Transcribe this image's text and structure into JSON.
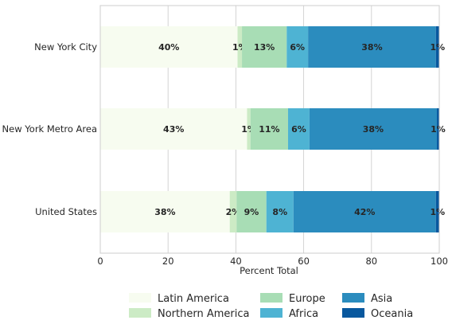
{
  "chart_data": {
    "type": "bar",
    "orientation": "horizontal",
    "stacked": true,
    "categories": [
      "New York City",
      "New York Metro Area",
      "United States"
    ],
    "series": [
      {
        "name": "Latin America",
        "color": "#f7fcf0",
        "values": [
          40.5,
          43.3,
          38.2
        ],
        "labels": [
          "40%",
          "43%",
          "38%"
        ]
      },
      {
        "name": "Northern America",
        "color": "#ccebc5",
        "values": [
          1.3,
          1.0,
          2.0
        ],
        "labels": [
          "1%",
          "1%",
          "2%"
        ]
      },
      {
        "name": "Europe",
        "color": "#a8ddb5",
        "values": [
          13.2,
          11.1,
          8.8
        ],
        "labels": [
          "13%",
          "11%",
          "9%"
        ]
      },
      {
        "name": "Africa",
        "color": "#4eb3d3",
        "values": [
          6.3,
          6.3,
          8.0
        ],
        "labels": [
          "6%",
          "6%",
          "8%"
        ]
      },
      {
        "name": "Asia",
        "color": "#2b8cbe",
        "values": [
          37.7,
          37.6,
          42.0
        ],
        "labels": [
          "38%",
          "38%",
          "42%"
        ]
      },
      {
        "name": "Oceania",
        "color": "#08589e",
        "values": [
          1.0,
          0.7,
          1.0
        ],
        "labels": [
          "1%",
          "1%",
          "1%"
        ]
      }
    ],
    "xlabel": "Percent Total",
    "ylabel": "",
    "xlim": [
      0,
      100
    ],
    "xticks": [
      0,
      20,
      40,
      60,
      80,
      100
    ],
    "grid": true,
    "legend_position": "bottom"
  }
}
